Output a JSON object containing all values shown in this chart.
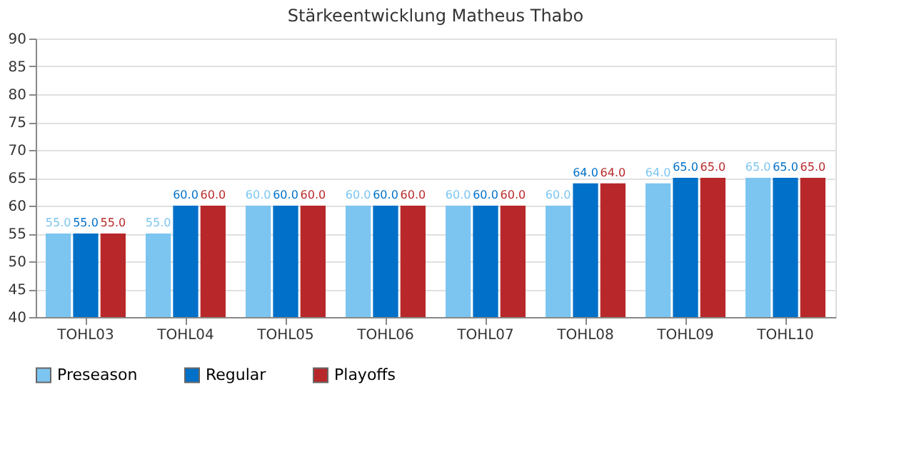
{
  "chart_data": {
    "type": "bar",
    "title": "Stärkeentwicklung Matheus Thabo",
    "categories": [
      "TOHL03",
      "TOHL04",
      "TOHL05",
      "TOHL06",
      "TOHL07",
      "TOHL08",
      "TOHL09",
      "TOHL10"
    ],
    "series": [
      {
        "name": "Preseason",
        "color": "#7cc5f0",
        "values": [
          55,
          55,
          60,
          60,
          60,
          60,
          64,
          65
        ],
        "value_labels": [
          "55.0",
          "55.0",
          "60.0",
          "60.0",
          "60.0",
          "60.0",
          "64.0",
          "65.0"
        ]
      },
      {
        "name": "Regular",
        "color": "#0070c8",
        "values": [
          55,
          60,
          60,
          60,
          60,
          64,
          65,
          65
        ],
        "value_labels": [
          "55.0",
          "60.0",
          "60.0",
          "60.0",
          "60.0",
          "64.0",
          "65.0",
          "65.0"
        ]
      },
      {
        "name": "Playoffs",
        "color": "#b8282a",
        "values": [
          55,
          60,
          60,
          60,
          60,
          64,
          65,
          65
        ],
        "value_labels": [
          "55.0",
          "60.0",
          "60.0",
          "60.0",
          "60.0",
          "64.0",
          "65.0",
          "65.0"
        ]
      }
    ],
    "ylim": [
      40,
      90
    ],
    "yticks": [
      40,
      45,
      50,
      55,
      60,
      65,
      70,
      75,
      80,
      85,
      90
    ],
    "grid": "y",
    "legend": "bottom"
  }
}
